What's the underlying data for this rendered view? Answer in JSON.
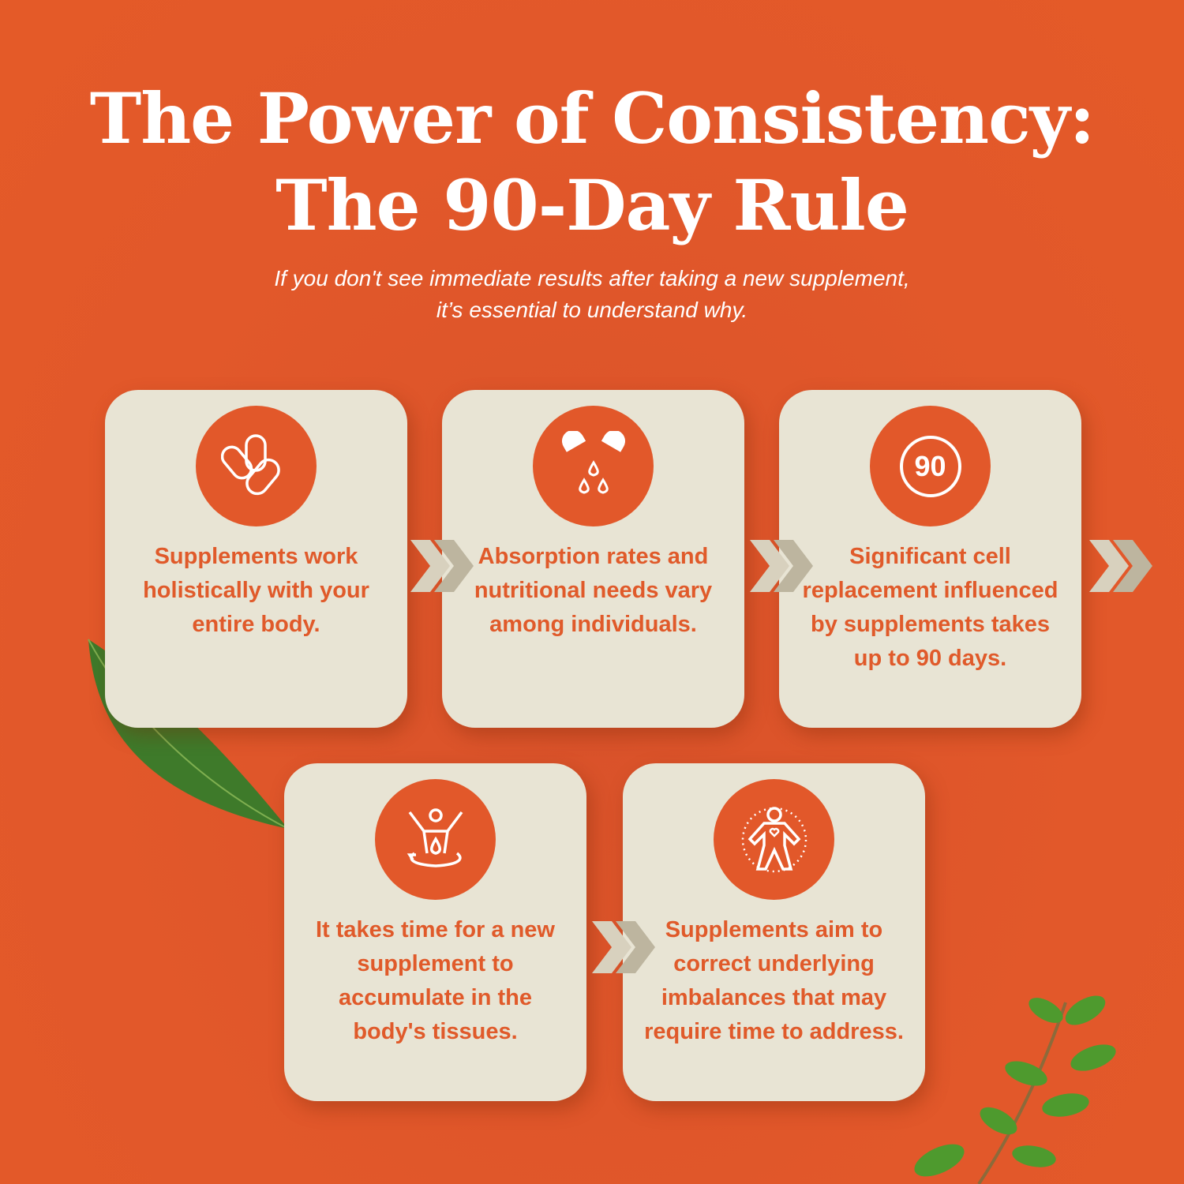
{
  "title_line1": "The Power of Consistency:",
  "title_line2": "The 90-Day Rule",
  "subtitle_line1": "If you don't see immediate results after taking a new supplement,",
  "subtitle_line2": "it’s essential to understand why.",
  "colors": {
    "background": "#E2582A",
    "card": "#E8E4D4",
    "accent": "#E05A2A",
    "chevron": "#C9C2AE"
  },
  "cards": [
    {
      "icon": "capsules-icon",
      "text": "Supplements work holistically with your entire body."
    },
    {
      "icon": "capsule-drops-icon",
      "text": "Absorption rates and nutritional needs vary among individuals."
    },
    {
      "icon": "ninety-badge-icon",
      "icon_text": "90",
      "text": "Significant cell replacement influenced by supplements takes up to 90 days."
    },
    {
      "icon": "body-absorption-icon",
      "text": "It takes time for a new supplement to accumulate in the body's tissues."
    },
    {
      "icon": "body-heart-icon",
      "text": "Supplements aim to correct underlying imbalances that may require time to address."
    }
  ]
}
